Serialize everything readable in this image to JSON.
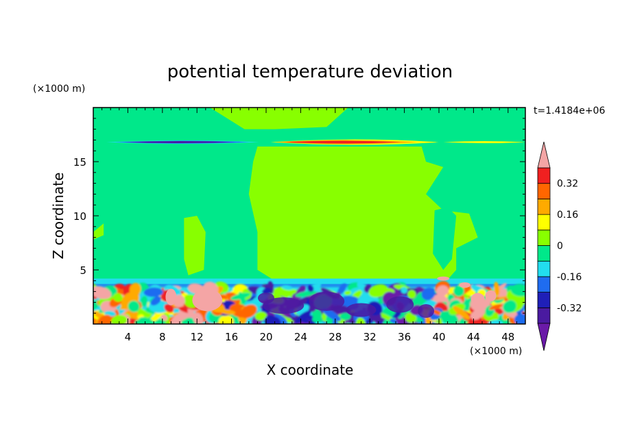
{
  "chart_data": {
    "type": "heatmap",
    "title": "potential temperature deviation",
    "xlabel": "X coordinate",
    "ylabel": "Z coordinate",
    "x_unit": "(×1000 m)",
    "y_unit": "(×1000 m)",
    "time_label": "t=1.4184e+06",
    "xlim": [
      0,
      50
    ],
    "ylim": [
      0,
      20
    ],
    "x_ticks": [
      4,
      8,
      12,
      16,
      20,
      24,
      28,
      32,
      36,
      40,
      44,
      48
    ],
    "y_ticks": [
      5,
      10,
      15
    ],
    "colorbar": {
      "levels": [
        -0.4,
        -0.32,
        -0.24,
        -0.16,
        -0.08,
        0,
        0.08,
        0.16,
        0.24,
        0.32,
        0.4
      ],
      "tick_labels": [
        "0.32",
        "0.16",
        "0",
        "-0.16",
        "-0.32"
      ],
      "tick_values": [
        0.32,
        0.16,
        0,
        -0.16,
        -0.32
      ],
      "colors_low_to_high": [
        "#6a1aa8",
        "#4a1aa0",
        "#1f1fb8",
        "#1f6cf0",
        "#22ddee",
        "#00e88a",
        "#88ff00",
        "#ffff00",
        "#ffaa00",
        "#ff6600",
        "#f02020",
        "#f4a5a5"
      ]
    },
    "features": [
      {
        "name": "upper negative band",
        "x_range": [
          2,
          19
        ],
        "z": 16.8,
        "value": -0.36
      },
      {
        "name": "upper positive band",
        "x_range": [
          20,
          38
        ],
        "z": 16.8,
        "value": 0.36
      },
      {
        "name": "mixed layer turbulence",
        "x_range": [
          0,
          50
        ],
        "z_range": [
          0,
          3.5
        ]
      }
    ]
  }
}
